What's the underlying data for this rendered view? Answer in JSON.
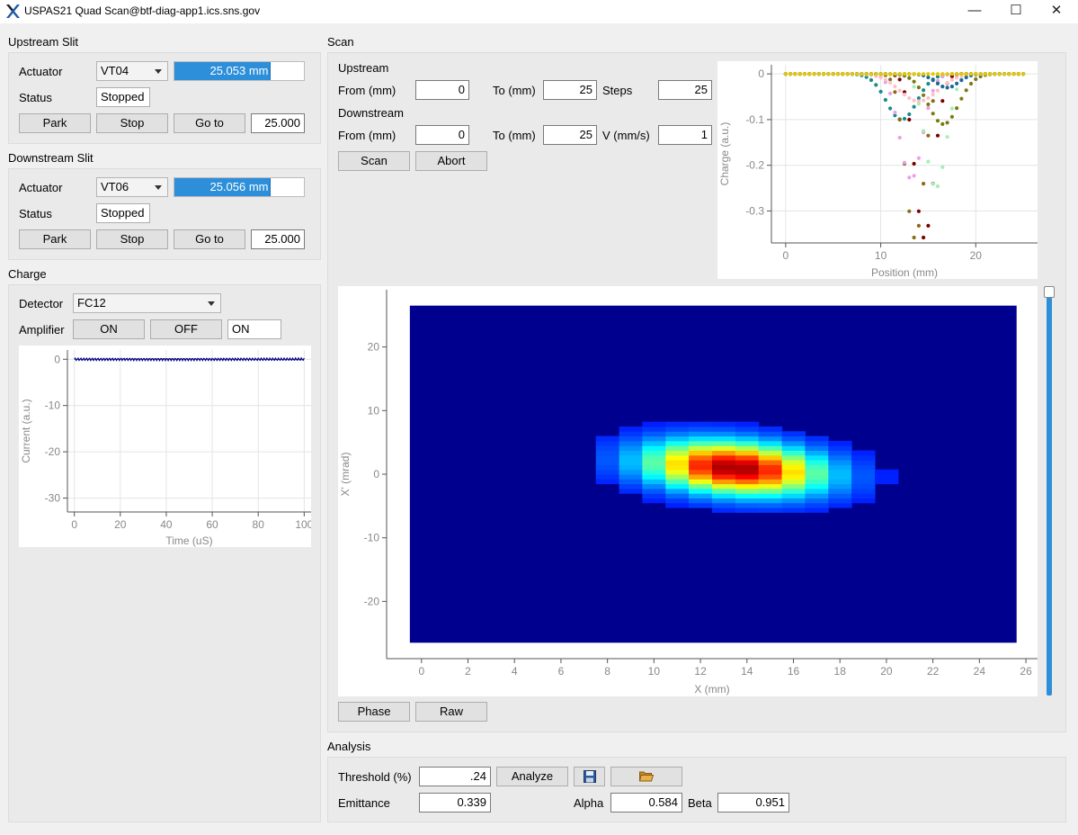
{
  "window": {
    "title": "USPAS21 Quad Scan@btf-diag-app1.ics.sns.gov",
    "minimize": "—",
    "maximize": "☐",
    "close": "✕"
  },
  "upstream_slit": {
    "title": "Upstream Slit",
    "actuator_label": "Actuator",
    "actuator_value": "VT04",
    "position_text": "25.053 mm",
    "progress_fraction": 0.74,
    "status_label": "Status",
    "status_value": "Stopped",
    "park": "Park",
    "stop": "Stop",
    "goto": "Go to",
    "goto_value": "25.000"
  },
  "downstream_slit": {
    "title": "Downstream Slit",
    "actuator_label": "Actuator",
    "actuator_value": "VT06",
    "position_text": "25.056 mm",
    "progress_fraction": 0.74,
    "status_label": "Status",
    "status_value": "Stopped",
    "park": "Park",
    "stop": "Stop",
    "goto": "Go to",
    "goto_value": "25.000"
  },
  "charge": {
    "title": "Charge",
    "detector_label": "Detector",
    "detector_value": "FC12",
    "amplifier_label": "Amplifier",
    "on": "ON",
    "off": "OFF",
    "amplifier_state": "ON"
  },
  "scan": {
    "title": "Scan",
    "upstream_label": "Upstream",
    "from_label": "From (mm)",
    "up_from": "0",
    "to_label": "To (mm)",
    "up_to": "25",
    "steps_label": "Steps",
    "steps": "25",
    "downstream_label": "Downstream",
    "down_from_label": "From (mm)",
    "down_from": "0",
    "down_to_label": "To (mm)",
    "down_to": "25",
    "v_label": "V (mm/s)",
    "v_value": "1",
    "scan_button": "Scan",
    "abort_button": "Abort",
    "phase_button": "Phase",
    "raw_button": "Raw"
  },
  "analysis": {
    "title": "Analysis",
    "threshold_label": "Threshold (%)",
    "threshold_value": ".24",
    "analyze_button": "Analyze",
    "emittance_label": "Emittance",
    "emittance_value": "0.339",
    "alpha_label": "Alpha",
    "alpha_value": "0.584",
    "beta_label": "Beta",
    "beta_value": "0.951"
  },
  "chart_data": [
    {
      "type": "line",
      "name": "current",
      "xlabel": "Time (uS)",
      "ylabel": "Current (a.u.)",
      "xlim": [
        -3,
        103
      ],
      "ylim": [
        -33,
        2
      ],
      "xticks": [
        0,
        20,
        40,
        60,
        80,
        100
      ],
      "yticks": [
        0,
        -10,
        -20,
        -30
      ],
      "series": [
        {
          "color": "#00007f",
          "x": [
            0,
            100
          ],
          "values": [
            0,
            0
          ]
        }
      ]
    },
    {
      "type": "scatter",
      "name": "charge_profiles",
      "xlabel": "Position (mm)",
      "ylabel": "Charge (a.u.)",
      "xlim": [
        -1.5,
        26.5
      ],
      "ylim": [
        -0.37,
        0.02
      ],
      "xticks": [
        0,
        10,
        20
      ],
      "yticks": [
        0,
        -0.1,
        -0.2,
        -0.3
      ],
      "series": [
        {
          "color": "#1b8a8a",
          "center": 12.2,
          "depth": 0.1,
          "width": 1.6
        },
        {
          "color": "#8b6b14",
          "center": 13.6,
          "depth": 0.36,
          "width": 1.0
        },
        {
          "color": "#e8a0e8",
          "center": 13.2,
          "depth": 0.23,
          "width": 1.2
        },
        {
          "color": "#7a0000",
          "center": 14.6,
          "depth": 0.36,
          "width": 1.0
        },
        {
          "color": "#a4f0b4",
          "center": 15.8,
          "depth": 0.25,
          "width": 1.1
        },
        {
          "color": "#7a7a10",
          "center": 16.6,
          "depth": 0.11,
          "width": 1.6
        },
        {
          "color": "#ffc0c8",
          "center": 14.0,
          "depth": 0.06,
          "width": 2.0
        },
        {
          "color": "#1a6a9a",
          "center": 17.0,
          "depth": 0.03,
          "width": 1.2
        },
        {
          "color": "#e6c800",
          "center": 12.0,
          "depth": 0.0,
          "width": 1.0
        }
      ]
    },
    {
      "type": "heatmap",
      "name": "phase_space",
      "xlabel": "X (mm)",
      "ylabel": "X' (mrad)",
      "xlim": [
        -1.5,
        26.5
      ],
      "ylim": [
        -29,
        29
      ],
      "xticks": [
        0,
        2,
        4,
        6,
        8,
        10,
        12,
        14,
        16,
        18,
        20,
        22,
        24,
        26
      ],
      "yticks": [
        20,
        10,
        0,
        -10,
        -20
      ],
      "data_extent": {
        "x": [
          -0.5,
          25.6
        ],
        "y": [
          -26.5,
          26.5
        ]
      },
      "peak": {
        "x": 13.5,
        "y": 1.0,
        "sigma_x": 2.6,
        "sigma_y": 2.8,
        "correlation_slope": -0.25
      },
      "colormap": "jet"
    }
  ]
}
